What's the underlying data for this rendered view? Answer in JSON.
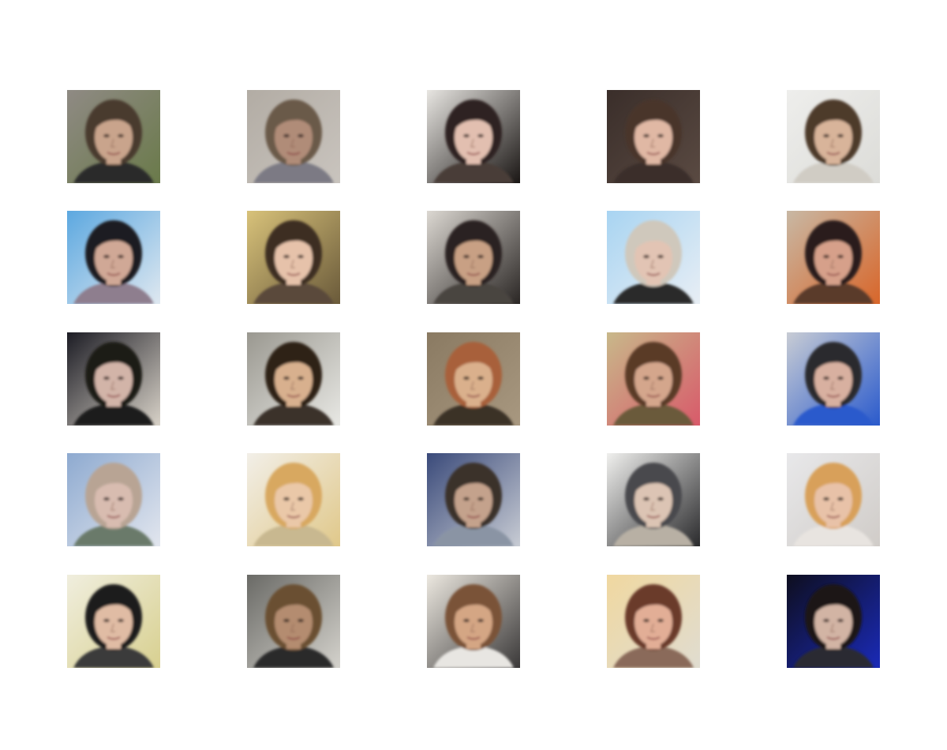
{
  "grid": {
    "rows": 5,
    "cols": 5,
    "tiles": [
      {
        "subject": "face",
        "bg": "#8f8a84",
        "bg2": "#6a7a4a",
        "hair": "#4a3a2e",
        "skin": "#c9a48c",
        "shirt": "#2a2a2a"
      },
      {
        "subject": "face",
        "bg": "#b2aca4",
        "bg2": "#c9c4be",
        "hair": "#6a5a4a",
        "skin": "#b08c78",
        "shirt": "#7c7a84"
      },
      {
        "subject": "face",
        "bg": "#e8e6e2",
        "bg2": "#1a1614",
        "hair": "#2e2420",
        "skin": "#e2bfb0",
        "shirt": "#4a3e38"
      },
      {
        "subject": "face",
        "bg": "#3a2e2a",
        "bg2": "#5a4a42",
        "hair": "#4a362c",
        "skin": "#e0b8a4",
        "shirt": "#3a2e2a"
      },
      {
        "subject": "face",
        "bg": "#eeeeec",
        "bg2": "#dcdcd8",
        "hair": "#4e3a2a",
        "skin": "#d8b49a",
        "shirt": "#d0ccc4"
      },
      {
        "subject": "face",
        "bg": "#5ca8e0",
        "bg2": "#dfe8f0",
        "hair": "#1e1e22",
        "skin": "#d0a896",
        "shirt": "#8e7e8e"
      },
      {
        "subject": "face",
        "bg": "#d8c27a",
        "bg2": "#6a5a3a",
        "hair": "#3e2e22",
        "skin": "#e6c2aa",
        "shirt": "#5a4a3a"
      },
      {
        "subject": "face",
        "bg": "#dcd8d2",
        "bg2": "#2a2624",
        "hair": "#2a2220",
        "skin": "#c8a084",
        "shirt": "#4a4440"
      },
      {
        "subject": "face",
        "bg": "#a8d4f2",
        "bg2": "#e8eef4",
        "hair": "#cfc8bc",
        "skin": "#e2c4b4",
        "shirt": "#2a2a2a"
      },
      {
        "subject": "face",
        "bg": "#c8b8a4",
        "bg2": "#d8662a",
        "hair": "#2a1e1a",
        "skin": "#d6a08a",
        "shirt": "#5a3a2a"
      },
      {
        "subject": "face",
        "bg": "#1c1c24",
        "bg2": "#d8d2c8",
        "hair": "#1e1a18",
        "skin": "#d2b4a8",
        "shirt": "#1a1a1a"
      },
      {
        "subject": "face",
        "bg": "#9a9890",
        "bg2": "#e8e8e4",
        "hair": "#2e2218",
        "skin": "#d8b08e",
        "shirt": "#3a322a"
      },
      {
        "subject": "face",
        "bg": "#8a7a62",
        "bg2": "#a89880",
        "hair": "#a8603a",
        "skin": "#dab08c",
        "shirt": "#3a3028"
      },
      {
        "subject": "face",
        "bg": "#c8b88a",
        "bg2": "#d85a6a",
        "hair": "#5a3a28",
        "skin": "#d4a68c",
        "shirt": "#6a5a3a"
      },
      {
        "subject": "face",
        "bg": "#c8ccd4",
        "bg2": "#2a5acc",
        "hair": "#2a2a2e",
        "skin": "#d8b0a0",
        "shirt": "#2a5acc"
      },
      {
        "subject": "face",
        "bg": "#8eaad0",
        "bg2": "#e2e6ee",
        "hair": "#b8a494",
        "skin": "#d8bcb0",
        "shirt": "#6a7a6a"
      },
      {
        "subject": "face",
        "bg": "#f2efe8",
        "bg2": "#e0c88a",
        "hair": "#d8a860",
        "skin": "#eac8a8",
        "shirt": "#c8b890"
      },
      {
        "subject": "face",
        "bg": "#3a4a7a",
        "bg2": "#c8ccd4",
        "hair": "#3a302a",
        "skin": "#c4a28c",
        "shirt": "#8a94a4"
      },
      {
        "subject": "face",
        "bg": "#f0f0ee",
        "bg2": "#2a2a2c",
        "hair": "#4a4a4e",
        "skin": "#dcc4b4",
        "shirt": "#b8b0a4"
      },
      {
        "subject": "face",
        "bg": "#e8e8ea",
        "bg2": "#d0ccc8",
        "hair": "#d8a05a",
        "skin": "#e8c2a8",
        "shirt": "#e8e4e0"
      },
      {
        "subject": "face",
        "bg": "#f0eede",
        "bg2": "#d8d090",
        "hair": "#1e1a1a",
        "skin": "#e0bca4",
        "shirt": "#3a3a3a"
      },
      {
        "subject": "face",
        "bg": "#6a6a66",
        "bg2": "#d4d2cc",
        "hair": "#6a5032",
        "skin": "#b48c70",
        "shirt": "#2a2a2a"
      },
      {
        "subject": "face",
        "bg": "#ece8e0",
        "bg2": "#3a3838",
        "hair": "#7a5238",
        "skin": "#d4a684",
        "shirt": "#e8e6e2"
      },
      {
        "subject": "face",
        "bg": "#f0d8a0",
        "bg2": "#e0dcd0",
        "hair": "#6a3a2a",
        "skin": "#e2ae96",
        "shirt": "#8a6a5a"
      },
      {
        "subject": "face",
        "bg": "#0e0e1e",
        "bg2": "#1a2ab8",
        "hair": "#1a1416",
        "skin": "#d2b4a4",
        "shirt": "#2a2a32"
      }
    ]
  }
}
